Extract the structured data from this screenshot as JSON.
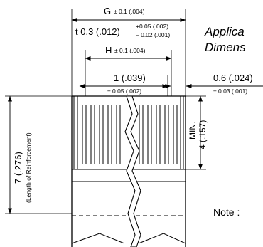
{
  "heading": {
    "line1": "Applica",
    "line2": "Dimens"
  },
  "dimensions": {
    "g": {
      "main": "G",
      "tol": "± 0.1 (.004)"
    },
    "t": {
      "main": "t 0.3 (.012)",
      "tol_plus": "+0.05 (.002)",
      "tol_minus": "– 0.02 (.001)"
    },
    "h": {
      "main": "H",
      "tol": "± 0.1 (.004)"
    },
    "pitch": {
      "main": "1 (.039)",
      "tol": "± 0.05 (.002)"
    },
    "edge": {
      "main": "0.6 (.024)",
      "tol": "± 0.03 (.001)"
    },
    "min_depth": {
      "line1": "MIN.",
      "line2": "4 (.157)"
    },
    "reinforcement": {
      "main": "7 (.276)",
      "note": "(Length of Reinforcement)"
    }
  },
  "note_label": "Note :"
}
